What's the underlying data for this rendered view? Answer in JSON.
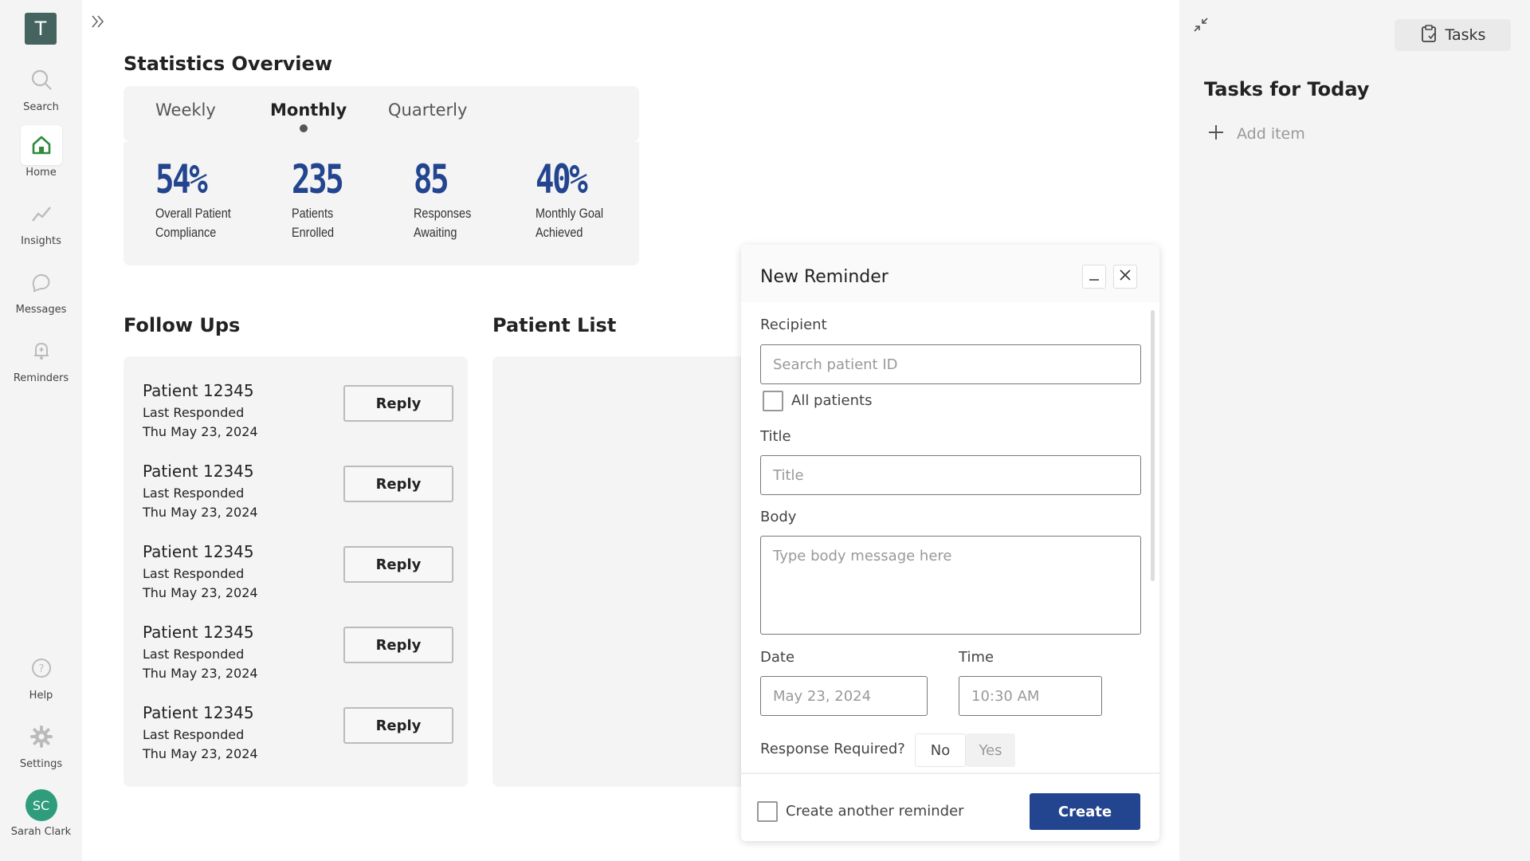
{
  "sidebar": {
    "logo_letter": "T",
    "items": [
      {
        "label": "Search",
        "icon": "search-icon"
      },
      {
        "label": "Home",
        "icon": "home-icon"
      },
      {
        "label": "Insights",
        "icon": "insights-icon"
      },
      {
        "label": "Messages",
        "icon": "messages-icon"
      },
      {
        "label": "Reminders",
        "icon": "bell-icon"
      }
    ],
    "bottom_items": [
      {
        "label": "Help",
        "icon": "help-icon"
      },
      {
        "label": "Settings",
        "icon": "gear-icon"
      }
    ],
    "user": {
      "initials": "SC",
      "name": "Sarah Clark"
    },
    "active": "Home"
  },
  "stats": {
    "title": "Statistics Overview",
    "tabs": [
      "Weekly",
      "Monthly",
      "Quarterly"
    ],
    "active_tab": "Monthly",
    "items": [
      {
        "value": "54%",
        "label": "Overall Patient Compliance"
      },
      {
        "value": "235",
        "label": "Patients Enrolled"
      },
      {
        "value": "85",
        "label": "Responses Awaiting"
      },
      {
        "value": "40%",
        "label": "Monthly Goal Achieved"
      }
    ]
  },
  "followups": {
    "title": "Follow Ups",
    "reply_label": "Reply",
    "rows": [
      {
        "name": "Patient 12345",
        "status": "Last Responded",
        "date": "Thu May 23, 2024"
      },
      {
        "name": "Patient 12345",
        "status": "Last Responded",
        "date": "Thu May 23, 2024"
      },
      {
        "name": "Patient 12345",
        "status": "Last Responded",
        "date": "Thu May 23, 2024"
      },
      {
        "name": "Patient 12345",
        "status": "Last Responded",
        "date": "Thu May 23, 2024"
      },
      {
        "name": "Patient 12345",
        "status": "Last Responded",
        "date": "Thu May 23, 2024"
      }
    ]
  },
  "patient_list": {
    "title": "Patient List"
  },
  "reminder": {
    "title": "New Reminder",
    "recipient_label": "Recipient",
    "recipient_placeholder": "Search patient ID",
    "all_patients_label": "All patients",
    "title_label": "Title",
    "title_placeholder": "Title",
    "body_label": "Body",
    "body_placeholder": "Type body message here",
    "date_label": "Date",
    "date_placeholder": "May 23, 2024",
    "time_label": "Time",
    "time_placeholder": "10:30 AM",
    "response_label": "Response Required?",
    "response_options": [
      "No",
      "Yes"
    ],
    "response_selected": "No",
    "create_another_label": "Create another reminder",
    "create_label": "Create"
  },
  "tasks": {
    "button_label": "Tasks",
    "title": "Tasks for Today",
    "add_item_label": "Add item"
  },
  "colors": {
    "accent": "#23458f",
    "home_icon": "#2e8b3e",
    "logo": "#46645f",
    "avatar": "#2f9c7c"
  }
}
